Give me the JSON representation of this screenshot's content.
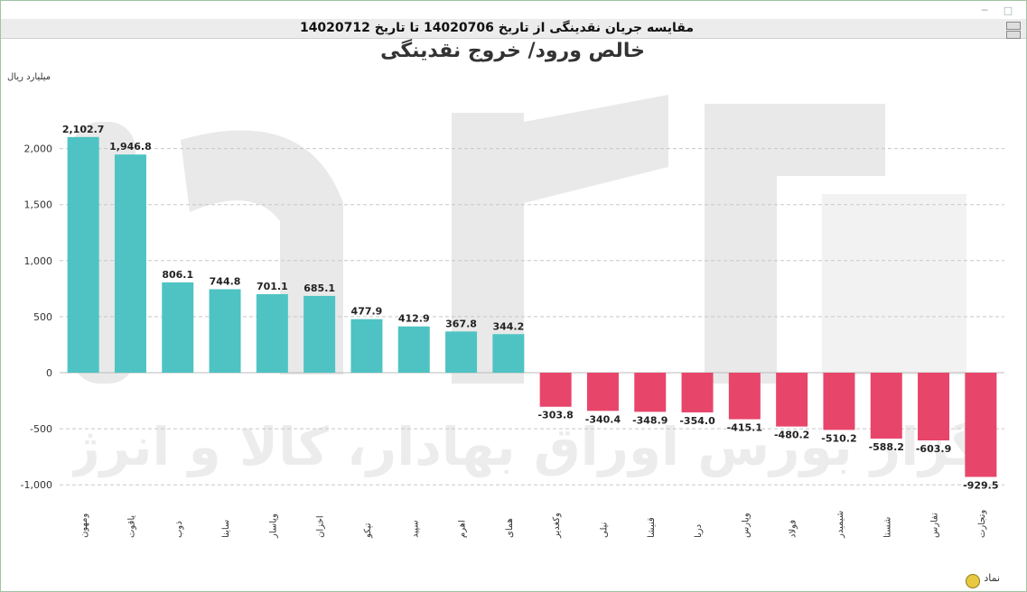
{
  "window": {
    "header_title": "مقایسه جریان نقدینگی از تاریخ 14020706 تا تاریخ 14020712",
    "buttons": [
      "minimize-icon",
      "maximize-icon"
    ]
  },
  "chart_title": "خالص ورود/ خروج نقدینگی",
  "unit_label": "میلیارد ریال",
  "legend_label": "نماد",
  "colors": {
    "positive": "#4fc3c3",
    "negative": "#e8456a",
    "grid": "#c8c8c8"
  },
  "chart_data": {
    "type": "bar",
    "title": "خالص ورود/ خروج نقدینگی",
    "ylabel": "میلیارد ریال",
    "xlabel": "نماد",
    "ylim": [
      -1100,
      2200
    ],
    "yticks": [
      -1000,
      -500,
      0,
      500,
      1000,
      1500,
      2000
    ],
    "ytick_labels": [
      "-1,000",
      "-500",
      "0",
      "500",
      "1,000",
      "1,500",
      "2,000"
    ],
    "grid": true,
    "categories": [
      "ومهون",
      "یاقوت",
      "ذوب",
      "ساینا",
      "وپاسار",
      "اخزان",
      "تپکو",
      "سپید",
      "اهرم",
      "همای",
      "وکغدیر",
      "نیلی",
      "قنیشا",
      "دریا",
      "وپارس",
      "فولاد",
      "شیمیدر",
      "شستا",
      "تفارس",
      "وتجارت"
    ],
    "values": [
      2102.7,
      1946.8,
      806.1,
      744.8,
      701.1,
      685.1,
      477.9,
      412.9,
      367.8,
      344.2,
      -303.8,
      -340.4,
      -348.9,
      -354.0,
      -415.1,
      -480.2,
      -510.2,
      -588.2,
      -603.9,
      -929.5
    ],
    "value_labels": [
      "2,102.7",
      "1,946.8",
      "806.1",
      "744.8",
      "701.1",
      "685.1",
      "477.9",
      "412.9",
      "367.8",
      "344.2",
      "-303.8",
      "-340.4",
      "-348.9",
      "-354.0",
      "-415.1",
      "-480.2",
      "-510.2",
      "-588.2",
      "-603.9",
      "-929.5"
    ]
  }
}
